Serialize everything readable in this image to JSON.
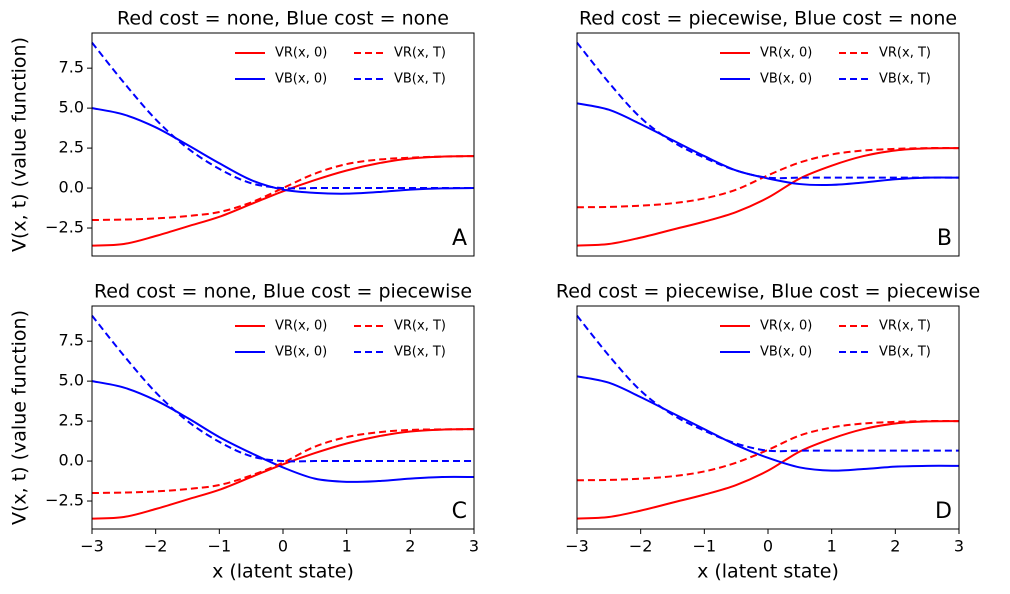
{
  "chart_data": [
    {
      "type": "line",
      "title": "Red cost = none, Blue cost = none",
      "annotation": "A",
      "ylabel": "V(x, t) (value function)",
      "x": [
        -3,
        -2.5,
        -2,
        -1.5,
        -1,
        -0.5,
        0,
        0.5,
        1,
        1.5,
        2,
        2.5,
        3
      ],
      "xlim": [
        -3,
        3
      ],
      "ylim": [
        -4.25,
        9.7
      ],
      "yticks": [
        {
          "value": -2.5,
          "label": "−2.5"
        },
        {
          "value": 0,
          "label": "0.0"
        },
        2.5,
        {
          "value": 5,
          "label": "5.0"
        },
        7.5
      ],
      "legend": "upper right",
      "series": [
        {
          "name": "VR(x, 0)",
          "color": "#ff0000",
          "style": "solid",
          "values": [
            -3.6,
            -3.5,
            -3.0,
            -2.4,
            -1.8,
            -1.0,
            -0.2,
            0.5,
            1.1,
            1.55,
            1.85,
            1.97,
            2.0
          ]
        },
        {
          "name": "VB(x, 0)",
          "color": "#0000ff",
          "style": "solid",
          "values": [
            5.0,
            4.6,
            3.8,
            2.7,
            1.55,
            0.5,
            -0.1,
            -0.3,
            -0.35,
            -0.25,
            -0.1,
            -0.02,
            0.0
          ]
        },
        {
          "name": "VR(x, T)",
          "color": "#ff0000",
          "style": "dashed",
          "values": [
            -2.0,
            -1.97,
            -1.9,
            -1.75,
            -1.5,
            -0.9,
            0.0,
            0.9,
            1.5,
            1.78,
            1.9,
            1.97,
            2.0
          ]
        },
        {
          "name": "VB(x, T)",
          "color": "#0000ff",
          "style": "dashed",
          "values": [
            9.1,
            6.6,
            4.3,
            2.5,
            1.2,
            0.3,
            0.0,
            0.0,
            0.0,
            0.0,
            0.0,
            0.0,
            0.0
          ]
        }
      ]
    },
    {
      "type": "line",
      "title": "Red cost = piecewise, Blue cost = none",
      "annotation": "B",
      "x": [
        -3,
        -2.5,
        -2,
        -1.5,
        -1,
        -0.5,
        0,
        0.5,
        1,
        1.5,
        2,
        2.5,
        3
      ],
      "xlim": [
        -3,
        3
      ],
      "ylim": [
        -4.25,
        9.7
      ],
      "legend": "upper right",
      "series": [
        {
          "name": "VR(x, 0)",
          "color": "#ff0000",
          "style": "solid",
          "values": [
            -3.6,
            -3.5,
            -3.1,
            -2.6,
            -2.1,
            -1.5,
            -0.6,
            0.6,
            1.4,
            2.0,
            2.35,
            2.48,
            2.5
          ]
        },
        {
          "name": "VB(x, 0)",
          "color": "#0000ff",
          "style": "solid",
          "values": [
            5.3,
            4.9,
            4.0,
            3.0,
            2.0,
            1.1,
            0.6,
            0.25,
            0.2,
            0.35,
            0.55,
            0.65,
            0.65
          ]
        },
        {
          "name": "VR(x, T)",
          "color": "#ff0000",
          "style": "dashed",
          "values": [
            -1.2,
            -1.18,
            -1.1,
            -0.95,
            -0.65,
            -0.1,
            0.8,
            1.6,
            2.1,
            2.35,
            2.45,
            2.5,
            2.5
          ]
        },
        {
          "name": "VB(x, T)",
          "color": "#0000ff",
          "style": "dashed",
          "values": [
            9.1,
            6.6,
            4.4,
            2.9,
            1.9,
            1.1,
            0.65,
            0.65,
            0.65,
            0.65,
            0.65,
            0.65,
            0.65
          ]
        }
      ]
    },
    {
      "type": "line",
      "title": "Red cost = none, Blue cost = piecewise",
      "annotation": "C",
      "ylabel": "V(x, t) (value function)",
      "xlabel": "x (latent state)",
      "x": [
        -3,
        -2.5,
        -2,
        -1.5,
        -1,
        -0.5,
        0,
        0.5,
        1,
        1.5,
        2,
        2.5,
        3
      ],
      "xlim": [
        -3,
        3
      ],
      "ylim": [
        -4.25,
        9.7
      ],
      "xticks": [
        {
          "value": -3,
          "label": "−3"
        },
        {
          "value": -2,
          "label": "−2"
        },
        {
          "value": -1,
          "label": "−1"
        },
        0,
        1,
        2,
        3
      ],
      "yticks": [
        {
          "value": -2.5,
          "label": "−2.5"
        },
        {
          "value": 0,
          "label": "0.0"
        },
        2.5,
        {
          "value": 5,
          "label": "5.0"
        },
        7.5
      ],
      "legend": "upper right",
      "series": [
        {
          "name": "VR(x, 0)",
          "color": "#ff0000",
          "style": "solid",
          "values": [
            -3.6,
            -3.5,
            -3.0,
            -2.4,
            -1.8,
            -1.0,
            -0.2,
            0.5,
            1.1,
            1.55,
            1.85,
            1.97,
            2.0
          ]
        },
        {
          "name": "VB(x, 0)",
          "color": "#0000ff",
          "style": "solid",
          "values": [
            5.0,
            4.6,
            3.8,
            2.7,
            1.5,
            0.5,
            -0.4,
            -1.1,
            -1.3,
            -1.25,
            -1.1,
            -1.0,
            -1.0
          ]
        },
        {
          "name": "VR(x, T)",
          "color": "#ff0000",
          "style": "dashed",
          "values": [
            -2.0,
            -1.97,
            -1.9,
            -1.75,
            -1.5,
            -0.9,
            -0.1,
            0.9,
            1.5,
            1.8,
            1.95,
            1.98,
            2.0
          ]
        },
        {
          "name": "VB(x, T)",
          "color": "#0000ff",
          "style": "dashed",
          "values": [
            9.1,
            6.6,
            4.3,
            2.5,
            1.2,
            0.3,
            0.0,
            0.0,
            0.0,
            0.0,
            0.0,
            0.0,
            0.0
          ]
        }
      ]
    },
    {
      "type": "line",
      "title": "Red cost = piecewise, Blue cost = piecewise",
      "annotation": "D",
      "xlabel": "x (latent state)",
      "x": [
        -3,
        -2.5,
        -2,
        -1.5,
        -1,
        -0.5,
        0,
        0.5,
        1,
        1.5,
        2,
        2.5,
        3
      ],
      "xlim": [
        -3,
        3
      ],
      "ylim": [
        -4.25,
        9.7
      ],
      "xticks": [
        {
          "value": -3,
          "label": "−3"
        },
        {
          "value": -2,
          "label": "−2"
        },
        {
          "value": -1,
          "label": "−1"
        },
        0,
        1,
        2,
        3
      ],
      "legend": "upper right",
      "series": [
        {
          "name": "VR(x, 0)",
          "color": "#ff0000",
          "style": "solid",
          "values": [
            -3.6,
            -3.5,
            -3.1,
            -2.6,
            -2.1,
            -1.5,
            -0.6,
            0.6,
            1.4,
            2.0,
            2.35,
            2.48,
            2.5
          ]
        },
        {
          "name": "VB(x, 0)",
          "color": "#0000ff",
          "style": "solid",
          "values": [
            5.3,
            4.9,
            4.0,
            3.0,
            2.0,
            1.0,
            0.2,
            -0.4,
            -0.6,
            -0.5,
            -0.35,
            -0.3,
            -0.3
          ]
        },
        {
          "name": "VR(x, T)",
          "color": "#ff0000",
          "style": "dashed",
          "values": [
            -1.2,
            -1.18,
            -1.1,
            -0.95,
            -0.65,
            -0.1,
            0.7,
            1.6,
            2.1,
            2.35,
            2.45,
            2.5,
            2.5
          ]
        },
        {
          "name": "VB(x, T)",
          "color": "#0000ff",
          "style": "dashed",
          "values": [
            9.1,
            6.6,
            4.4,
            2.9,
            1.9,
            1.1,
            0.65,
            0.65,
            0.65,
            0.65,
            0.65,
            0.65,
            0.65
          ]
        }
      ]
    }
  ]
}
